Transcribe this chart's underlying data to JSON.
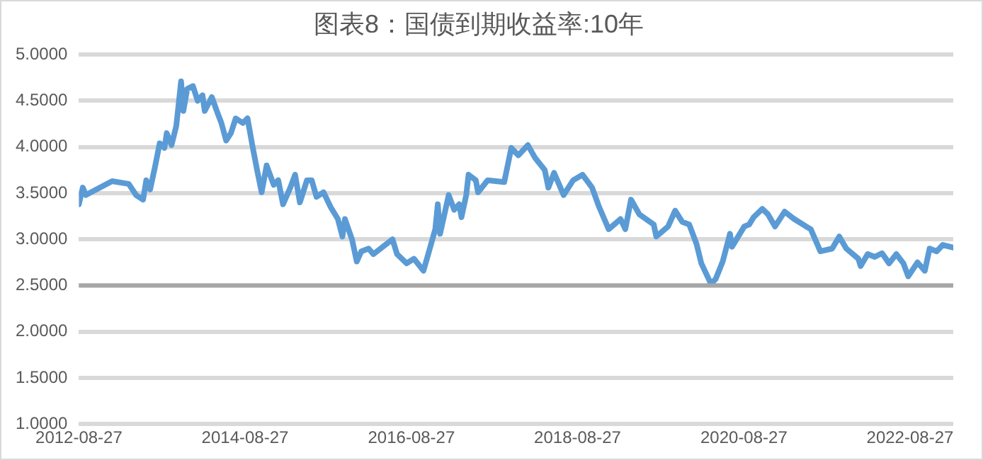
{
  "chart_data": {
    "type": "line",
    "title": "图表8：国债到期收益率:10年",
    "x": [
      "2012-08-27",
      "2012-09-13",
      "2012-09-27",
      "2013-01-20",
      "2013-04-03",
      "2013-05-05",
      "2013-06-05",
      "2013-06-19",
      "2013-07-06",
      "2013-07-27",
      "2013-08-17",
      "2013-09-07",
      "2013-09-17",
      "2013-10-08",
      "2013-10-29",
      "2013-11-19",
      "2013-11-29",
      "2013-12-16",
      "2014-01-10",
      "2014-01-31",
      "2014-02-21",
      "2014-03-03",
      "2014-04-03",
      "2014-04-25",
      "2014-05-15",
      "2014-06-05",
      "2014-06-26",
      "2014-07-17",
      "2014-08-17",
      "2014-09-07",
      "2014-09-28",
      "2014-10-19",
      "2014-11-08",
      "2014-11-30",
      "2014-12-31",
      "2015-01-20",
      "2015-02-10",
      "2015-03-14",
      "2015-04-04",
      "2015-04-25",
      "2015-05-26",
      "2015-06-16",
      "2015-07-07",
      "2015-08-07",
      "2015-09-07",
      "2015-10-09",
      "2015-10-29",
      "2015-11-09",
      "2015-12-10",
      "2015-12-31",
      "2016-01-20",
      "2016-02-21",
      "2016-03-13",
      "2016-04-24",
      "2016-06-05",
      "2016-06-25",
      "2016-08-06",
      "2016-09-07",
      "2016-10-19",
      "2016-11-09",
      "2016-12-10",
      "2016-12-21",
      "2016-12-31",
      "2017-02-07",
      "2017-03-03",
      "2017-03-25",
      "2017-04-04",
      "2017-04-25",
      "2017-05-05",
      "2017-06-06",
      "2017-06-16",
      "2017-07-28",
      "2017-10-09",
      "2017-11-09",
      "2017-12-10",
      "2018-01-21",
      "2018-02-22",
      "2018-04-05",
      "2018-04-21",
      "2018-05-16",
      "2018-06-27",
      "2018-08-08",
      "2018-09-18",
      "2018-10-30",
      "2018-11-30",
      "2019-01-11",
      "2019-03-04",
      "2019-03-25",
      "2019-04-19",
      "2019-05-26",
      "2019-07-28",
      "2019-08-08",
      "2019-09-29",
      "2019-10-30",
      "2019-11-30",
      "2019-12-31",
      "2020-02-01",
      "2020-02-22",
      "2020-04-04",
      "2020-04-25",
      "2020-05-26",
      "2020-06-27",
      "2020-07-06",
      "2020-08-29",
      "2020-09-19",
      "2020-10-09",
      "2020-11-16",
      "2020-12-11",
      "2021-01-11",
      "2021-02-22",
      "2021-04-05",
      "2021-05-27",
      "2021-06-17",
      "2021-07-29",
      "2021-09-19",
      "2021-10-20",
      "2021-11-20",
      "2022-01-12",
      "2022-01-22",
      "2022-02-22",
      "2022-03-25",
      "2022-04-26",
      "2022-05-27",
      "2022-06-28",
      "2022-07-29",
      "2022-08-19",
      "2022-09-29",
      "2022-10-31",
      "2022-11-21",
      "2022-12-22",
      "2023-01-18",
      "2023-03-05"
    ],
    "series": [
      {
        "color": "#5b9bd5",
        "values": [
          3.38,
          3.56,
          3.48,
          3.63,
          3.6,
          3.48,
          3.43,
          3.64,
          3.54,
          3.78,
          4.04,
          3.99,
          4.15,
          4.02,
          4.23,
          4.71,
          4.39,
          4.63,
          4.66,
          4.5,
          4.56,
          4.39,
          4.54,
          4.39,
          4.26,
          4.07,
          4.15,
          4.31,
          4.26,
          4.31,
          4.02,
          3.75,
          3.51,
          3.8,
          3.59,
          3.64,
          3.38,
          3.56,
          3.7,
          3.4,
          3.64,
          3.64,
          3.46,
          3.51,
          3.35,
          3.22,
          3.03,
          3.22,
          3.0,
          2.76,
          2.87,
          2.9,
          2.84,
          2.92,
          3.0,
          2.84,
          2.74,
          2.79,
          2.66,
          2.84,
          3.11,
          3.38,
          3.06,
          3.48,
          3.32,
          3.38,
          3.24,
          3.48,
          3.7,
          3.64,
          3.51,
          3.64,
          3.62,
          3.99,
          3.91,
          4.02,
          3.88,
          3.75,
          3.56,
          3.72,
          3.48,
          3.64,
          3.7,
          3.56,
          3.35,
          3.11,
          3.22,
          3.11,
          3.43,
          3.27,
          3.16,
          3.03,
          3.14,
          3.31,
          3.19,
          3.16,
          2.95,
          2.74,
          2.52,
          2.57,
          2.76,
          3.06,
          2.92,
          3.14,
          3.16,
          3.24,
          3.33,
          3.27,
          3.14,
          3.3,
          3.22,
          3.14,
          3.11,
          2.87,
          2.9,
          3.03,
          2.9,
          2.79,
          2.71,
          2.84,
          2.81,
          2.85,
          2.74,
          2.84,
          2.74,
          2.6,
          2.75,
          2.66,
          2.9,
          2.87,
          2.94,
          2.91
        ]
      }
    ],
    "xlim": [
      "2012-08-27",
      "2023-03-05"
    ],
    "xticks": [
      "2012-08-27",
      "2014-08-27",
      "2016-08-27",
      "2018-08-27",
      "2020-08-27",
      "2022-08-27"
    ],
    "ylim": [
      1,
      5
    ],
    "yticks": [
      {
        "value": 1,
        "label": "1.0000"
      },
      {
        "value": 1.5,
        "label": "1.5000"
      },
      {
        "value": 2,
        "label": "2.0000"
      },
      {
        "value": 2.5,
        "label": "2.5000"
      },
      {
        "value": 3,
        "label": "3.0000"
      },
      {
        "value": 3.5,
        "label": "3.5000"
      },
      {
        "value": 4,
        "label": "4.0000"
      },
      {
        "value": 4.5,
        "label": "4.5000"
      },
      {
        "value": 5,
        "label": "5.0000"
      }
    ],
    "ref_lines": [
      {
        "axis": "y",
        "value": 2.5,
        "color": "#a6a6a6"
      }
    ],
    "grid": "y",
    "legend": false,
    "marker": "none",
    "line_style": "solid"
  }
}
